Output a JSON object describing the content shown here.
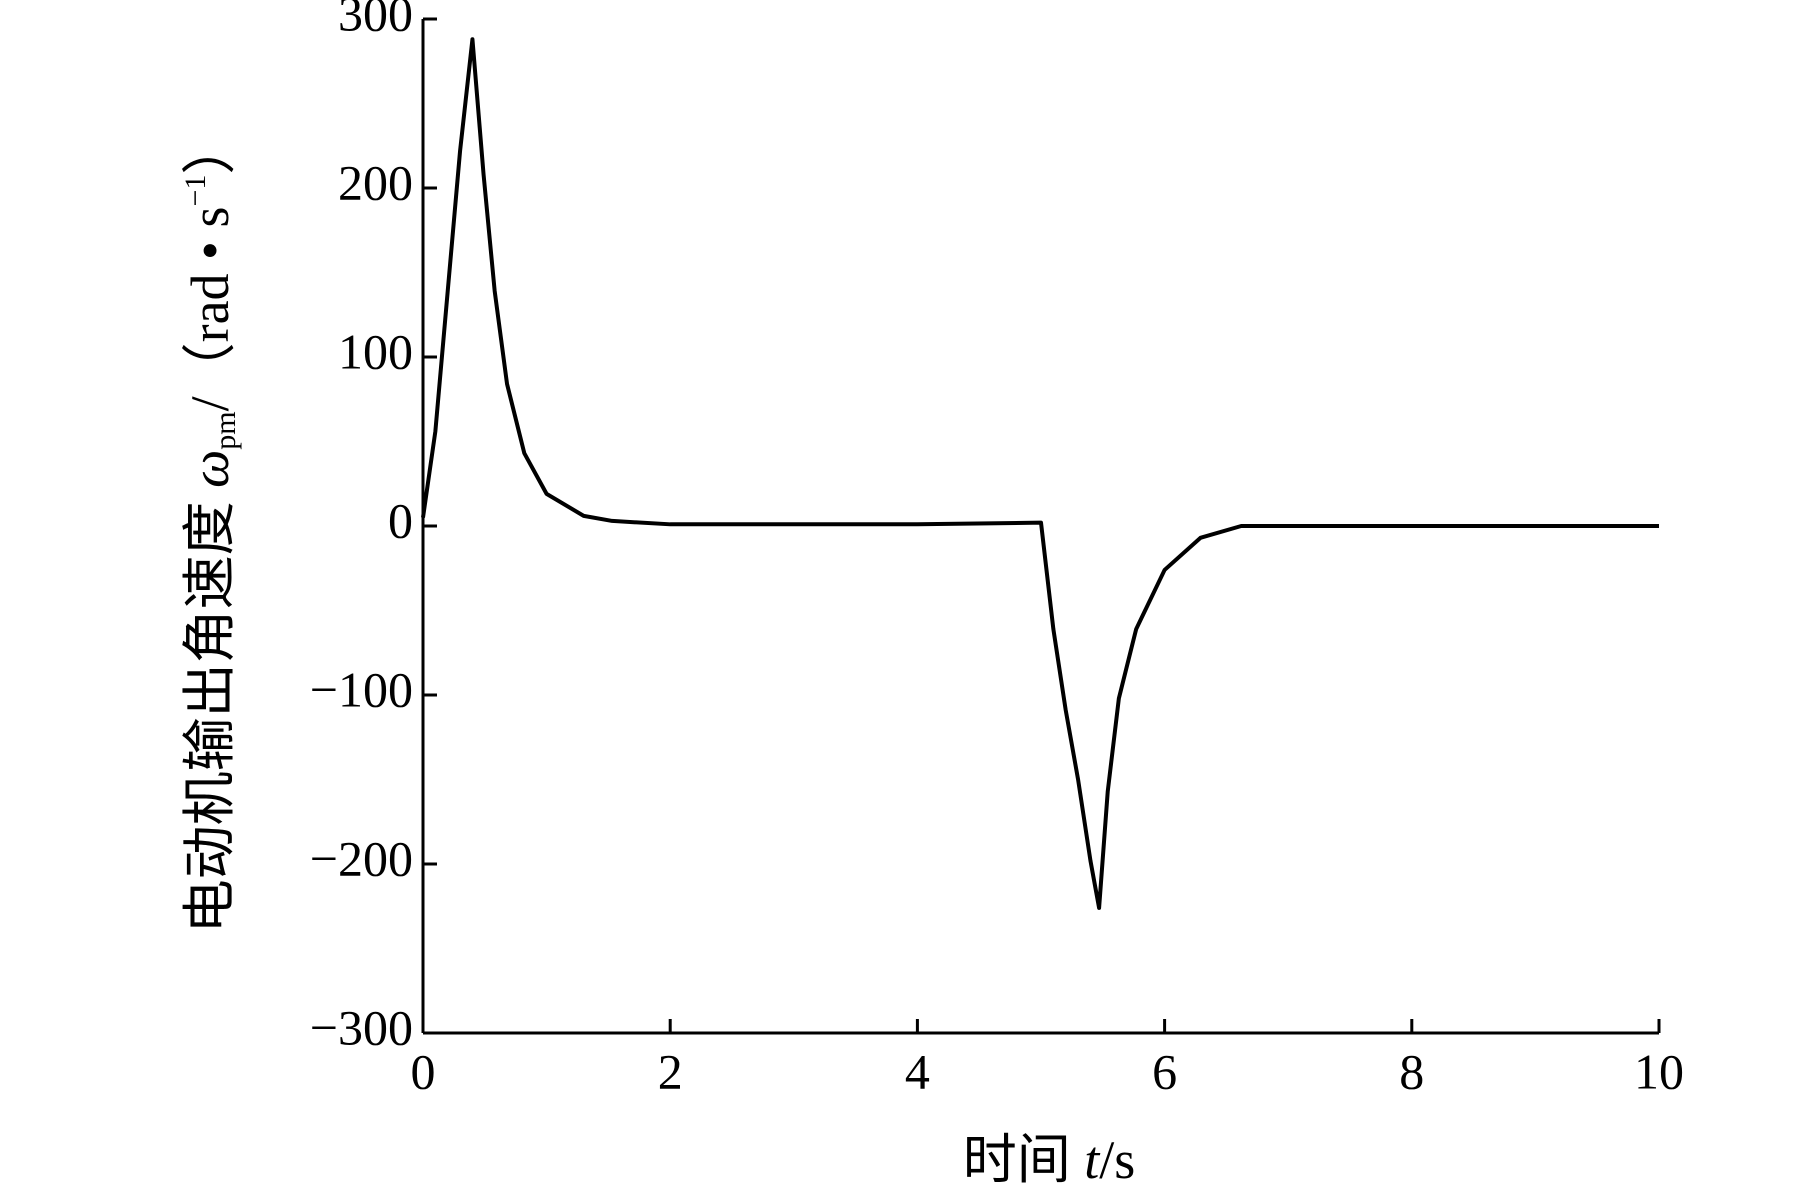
{
  "chart_data": {
    "type": "line",
    "x_label": {
      "text": "时间",
      "symbol": "t",
      "unit": "/s"
    },
    "y_label": {
      "text": "电动机输出角速度",
      "symbol": "ω",
      "subscript": "pm",
      "unit": "/（rad • s",
      "superscript": "−1",
      "close": "）"
    },
    "x": [
      0,
      0.1,
      0.2,
      0.3,
      0.4,
      0.49,
      0.58,
      0.68,
      0.82,
      1.0,
      1.3,
      1.53,
      2,
      3,
      4,
      5.0,
      5.1,
      5.2,
      5.3,
      5.4,
      5.47,
      5.54,
      5.63,
      5.77,
      6.0,
      6.29,
      6.62,
      7,
      8,
      9,
      10
    ],
    "series": [
      {
        "name": "ωpm",
        "color": "#000000",
        "values": [
          5,
          56,
          139,
          222,
          288,
          208,
          139,
          84,
          43,
          19,
          6,
          3,
          1,
          1,
          1,
          2,
          -61,
          -109,
          -150,
          -198,
          -226,
          -157,
          -102,
          -61,
          -26,
          -7,
          0,
          0,
          0,
          0,
          0
        ]
      }
    ],
    "xlim": [
      0,
      10
    ],
    "xticks": [
      0,
      2,
      4,
      6,
      8,
      10
    ],
    "ylim": [
      -300,
      300
    ],
    "yticks": [
      {
        "value": -300,
        "label": "−300"
      },
      {
        "value": -200,
        "label": "−200"
      },
      {
        "value": -100,
        "label": "−100"
      },
      0,
      100,
      200,
      300
    ],
    "grid": false
  }
}
